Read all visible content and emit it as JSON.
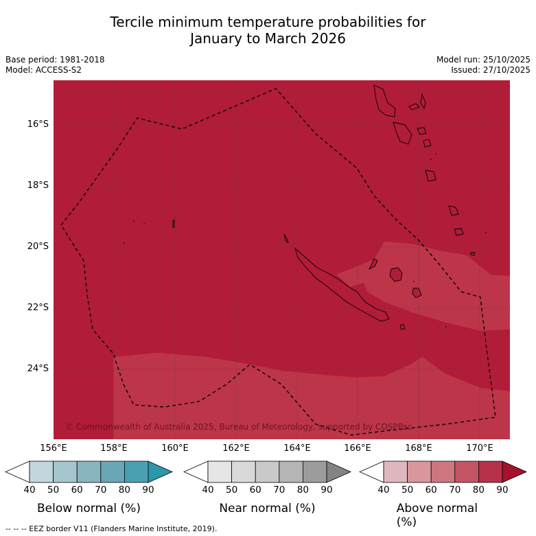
{
  "title_line1": "Tercile minimum temperature probabilities for",
  "title_line2": "January to March 2026",
  "base_period": "Base period: 1981-2018",
  "model": "Model: ACCESS-S2",
  "model_run": "Model run: 25/10/2025",
  "issued": "Issued: 27/10/2025",
  "copyright": "© Commonwealth of Australia 2025, Bureau of Meteorology, supported by COSPPac",
  "footer": "--  --  -- EEZ border V11 (Flanders Marine Institute, 2019).",
  "lat_labels": [
    "16°S",
    "18°S",
    "20°S",
    "22°S",
    "24°S"
  ],
  "lon_labels": [
    "156°E",
    "158°E",
    "160°E",
    "162°E",
    "164°E",
    "166°E",
    "168°E",
    "170°E"
  ],
  "colorbars": [
    {
      "title": "Below normal (%)",
      "ticks": [
        "40",
        "50",
        "60",
        "70",
        "80",
        "90"
      ],
      "colors": [
        "#c2d6de",
        "#a5c6cd",
        "#88b5c0",
        "#6aa7b6",
        "#4aa0b1",
        "#2b97aa"
      ]
    },
    {
      "title": "Near normal (%)",
      "ticks": [
        "40",
        "50",
        "60",
        "70",
        "80",
        "90"
      ],
      "colors": [
        "#e6e6e6",
        "#d9d9d9",
        "#c9c9c9",
        "#b5b5b5",
        "#9c9c9c",
        "#838383"
      ]
    },
    {
      "title": "Above normal (%)",
      "ticks": [
        "40",
        "50",
        "60",
        "70",
        "80",
        "90"
      ],
      "colors": [
        "#e0b7be",
        "#d8969d",
        "#cd7880",
        "#c45564",
        "#b6314a",
        "#a5122f"
      ]
    }
  ],
  "colors": {
    "map_dominant": "#b11c39",
    "map_light": "#bd3549",
    "grid": "#444444"
  }
}
